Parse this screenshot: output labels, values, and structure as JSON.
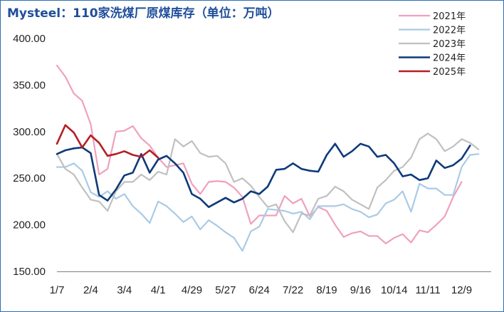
{
  "chart_data": {
    "type": "line",
    "title": "Mysteel：110家洗煤厂原煤库存（单位：万吨）",
    "ylim": [
      150,
      400
    ],
    "yticks": [
      "150.00",
      "200.00",
      "250.00",
      "300.00",
      "350.00",
      "400.00"
    ],
    "yticks_values": [
      150,
      200,
      250,
      300,
      350,
      400
    ],
    "x_count": 52,
    "x_tick_labels": [
      {
        "i": 0,
        "label": "1/7"
      },
      {
        "i": 4,
        "label": "2/4"
      },
      {
        "i": 8,
        "label": "3/4"
      },
      {
        "i": 12,
        "label": "4/1"
      },
      {
        "i": 16,
        "label": "4/29"
      },
      {
        "i": 20,
        "label": "5/27"
      },
      {
        "i": 24,
        "label": "6/24"
      },
      {
        "i": 28,
        "label": "7/22"
      },
      {
        "i": 32,
        "label": "8/19"
      },
      {
        "i": 36,
        "label": "9/16"
      },
      {
        "i": 40,
        "label": "10/14"
      },
      {
        "i": 44,
        "label": "11/11"
      },
      {
        "i": 48,
        "label": "12/9"
      }
    ],
    "grid": false,
    "legend_position": "top-right",
    "series": [
      {
        "name": "2021年",
        "color": "#f0a0be",
        "width": 2.2,
        "values": [
          371,
          359,
          341,
          333,
          308,
          254,
          260,
          300,
          301,
          306,
          293,
          285,
          272,
          262,
          264,
          266,
          244,
          233,
          246,
          247,
          246,
          240,
          230,
          201,
          210,
          210,
          210,
          231,
          223,
          228,
          209,
          219,
          215,
          200,
          187,
          191,
          193,
          188,
          188,
          180,
          186,
          190,
          181,
          194,
          192,
          200,
          209,
          230,
          246
        ]
      },
      {
        "name": "2022年",
        "color": "#a9cbe6",
        "width": 2.2,
        "values": [
          262,
          262,
          266,
          258,
          235,
          230,
          236,
          228,
          233,
          220,
          212,
          202,
          225,
          220,
          212,
          203,
          209,
          195,
          205,
          199,
          192,
          186,
          172,
          193,
          198,
          217,
          216,
          215,
          212,
          214,
          206,
          220,
          220,
          220,
          222,
          217,
          214,
          208,
          211,
          223,
          227,
          236,
          214,
          244,
          239,
          239,
          232,
          232,
          262,
          275,
          276
        ]
      },
      {
        "name": "2023年",
        "color": "#c0c0c0",
        "width": 2.2,
        "values": [
          276,
          260,
          254,
          240,
          227,
          225,
          215,
          236,
          246,
          246,
          254,
          248,
          257,
          254,
          292,
          284,
          290,
          277,
          273,
          274,
          266,
          246,
          250,
          242,
          230,
          219,
          222,
          204,
          192,
          212,
          210,
          228,
          231,
          241,
          236,
          227,
          222,
          217,
          240,
          248,
          258,
          262,
          272,
          292,
          298,
          292,
          279,
          284,
          292,
          288,
          281
        ]
      },
      {
        "name": "2024年",
        "color": "#0e3a7a",
        "width": 2.6,
        "values": [
          276,
          280,
          282,
          283,
          277,
          232,
          226,
          238,
          253,
          256,
          276,
          256,
          270,
          274,
          266,
          256,
          233,
          228,
          219,
          224,
          229,
          224,
          228,
          236,
          233,
          241,
          259,
          260,
          266,
          260,
          258,
          257,
          275,
          287,
          273,
          279,
          287,
          284,
          273,
          275,
          266,
          252,
          254,
          248,
          250,
          269,
          261,
          264,
          271,
          285
        ]
      },
      {
        "name": "2025年",
        "color": "#b41f24",
        "width": 2.6,
        "values": [
          287,
          307,
          299,
          283,
          296,
          288,
          274,
          276,
          279,
          275,
          273,
          280,
          272
        ]
      }
    ]
  }
}
